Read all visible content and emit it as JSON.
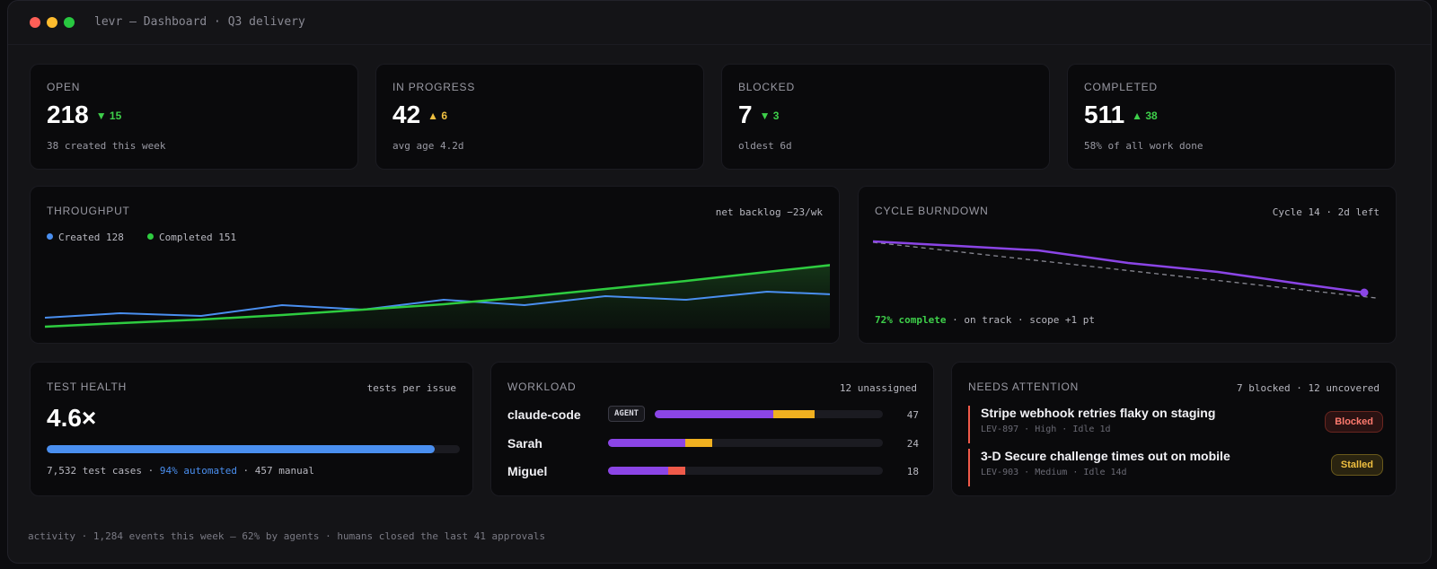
{
  "window": {
    "title": "levr — Dashboard · Q3 delivery"
  },
  "stats": [
    {
      "label": "OPEN",
      "value": "218",
      "delta": "▼ 15",
      "delta_color": "#3ecf4a",
      "sub": "38 created this week"
    },
    {
      "label": "IN PROGRESS",
      "value": "42",
      "delta": "▲ 6",
      "delta_color": "#f0c040",
      "sub": "avg age 4.2d"
    },
    {
      "label": "BLOCKED",
      "value": "7",
      "delta": "▼ 3",
      "delta_color": "#3ecf4a",
      "sub": "oldest 6d"
    },
    {
      "label": "COMPLETED",
      "value": "511",
      "delta": "▲ 38",
      "delta_color": "#3ecf4a",
      "sub": "58% of all work done"
    }
  ],
  "throughput": {
    "label": "THROUGHPUT",
    "note": "net backlog −23/wk",
    "legend_created": "Created 128",
    "legend_completed": "Completed 151",
    "colors": {
      "created": "#4a8ff0",
      "completed": "#2ecc40"
    }
  },
  "burndown": {
    "label": "CYCLE BURNDOWN",
    "note": "Cycle 14 · 2d left",
    "status_highlight": "72% complete",
    "status_rest": " · on track · scope +1 pt",
    "colors": {
      "actual": "#8b45e6",
      "ideal": "#8a8a94"
    }
  },
  "test_health": {
    "label": "TEST HEALTH",
    "note": "tests per issue",
    "value": "4.6×",
    "automated_fraction": 0.94,
    "footer_a": "7,532 test cases · ",
    "footer_hl": "94% automated",
    "footer_b": " · 457 manual"
  },
  "workload": {
    "label": "WORKLOAD",
    "note": "12 unassigned",
    "agent_badge": "AGENT",
    "rows": [
      {
        "name": "claude-code",
        "count": "47",
        "purple": 0.52,
        "yellow": 0.18
      },
      {
        "name": "Sarah",
        "count": "24",
        "purple": 0.28,
        "yellow": 0.1
      },
      {
        "name": "Miguel",
        "count": "18",
        "purple": 0.22,
        "red": 0.06
      }
    ]
  },
  "attention": {
    "label": "NEEDS ATTENTION",
    "note": "7 blocked · 12 uncovered",
    "items": [
      {
        "title": "Stripe webhook retries flaky on staging",
        "meta": "LEV-897 · High · Idle 1d",
        "status": "Blocked"
      },
      {
        "title": "3-D Secure challenge times out on mobile",
        "meta": "LEV-903 · Medium · Idle 14d",
        "status": "Stalled"
      }
    ]
  },
  "footer": "activity · 1,284 events this week — 62% by agents · humans closed the last 41 approvals"
}
